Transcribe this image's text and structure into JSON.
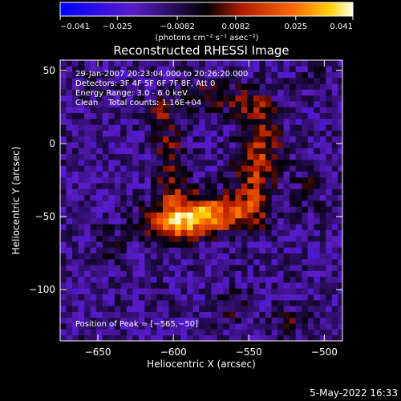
{
  "chart_data": {
    "type": "heatmap",
    "title": "Reconstructed RHESSI Image",
    "xlabel": "Heliocentric X (arcsec)",
    "ylabel": "Heliocentric Y (arcsec)",
    "xlim": [
      -675,
      -488
    ],
    "ylim": [
      -135,
      57
    ],
    "x_ticks": [
      -650,
      -600,
      -550,
      -500
    ],
    "x_tick_labels": [
      "−650",
      "−600",
      "−550",
      "−500"
    ],
    "y_ticks": [
      50,
      0,
      -50,
      -100
    ],
    "y_tick_labels": [
      "50",
      "0",
      "−50",
      "−100"
    ],
    "colorbar": {
      "range": [
        -0.041,
        0.041
      ],
      "ticks": [
        -0.041,
        -0.025,
        -0.0082,
        0.0082,
        0.025,
        0.041
      ],
      "tick_labels": [
        "−0.041",
        "−0.025",
        "−0.0082",
        "0.0082",
        "0.025",
        "0.041"
      ],
      "unit_label": "(photons cm⁻² s⁻¹ asec⁻²)"
    },
    "annotations": [
      "29-Jan-2007 20:23:04.000 to 20:26:20.000",
      "Detectors: 3F 4F 5F 6F 7F 8F, Att 0",
      "Energy Range: 3.0 - 6.0 keV",
      "Clean    Total counts: 1.16E+04"
    ],
    "peak_label": "Position of Peak = [−565,−50]",
    "peak": {
      "x": -565,
      "y": -50,
      "value": 0.041
    },
    "sources": [
      {
        "x": -578,
        "y": -48,
        "sx": 22,
        "sy": 9,
        "amp": 0.04
      },
      {
        "x": -600,
        "y": -56,
        "sx": 12,
        "sy": 8,
        "amp": 0.03
      },
      {
        "x": -548,
        "y": -28,
        "sx": 9,
        "sy": 17,
        "amp": 0.022
      },
      {
        "x": -540,
        "y": 0,
        "sx": 9,
        "sy": 14,
        "amp": 0.02
      },
      {
        "x": -548,
        "y": 26,
        "sx": 10,
        "sy": 9,
        "amp": 0.018
      },
      {
        "x": -578,
        "y": 33,
        "sx": 14,
        "sy": 7,
        "amp": 0.016
      },
      {
        "x": -607,
        "y": 22,
        "sx": 8,
        "sy": 8,
        "amp": 0.016
      },
      {
        "x": -603,
        "y": -5,
        "sx": 7,
        "sy": 12,
        "amp": 0.018
      },
      {
        "x": -600,
        "y": -30,
        "sx": 8,
        "sy": 8,
        "amp": 0.016
      },
      {
        "x": -560,
        "y": -110,
        "sx": 8,
        "sy": 8,
        "amp": 0.012
      },
      {
        "x": -520,
        "y": -122,
        "sx": 8,
        "sy": 6,
        "amp": 0.012
      },
      {
        "x": -640,
        "y": -70,
        "sx": 8,
        "sy": 8,
        "amp": 0.01
      },
      {
        "x": -655,
        "y": 40,
        "sx": 7,
        "sy": 7,
        "amp": 0.008
      },
      {
        "x": -505,
        "y": 45,
        "sx": 7,
        "sy": 7,
        "amp": 0.008
      },
      {
        "x": -510,
        "y": -30,
        "sx": 7,
        "sy": 10,
        "amp": 0.009
      }
    ]
  },
  "footer": {
    "timestamp": "5-May-2022 16:33"
  }
}
